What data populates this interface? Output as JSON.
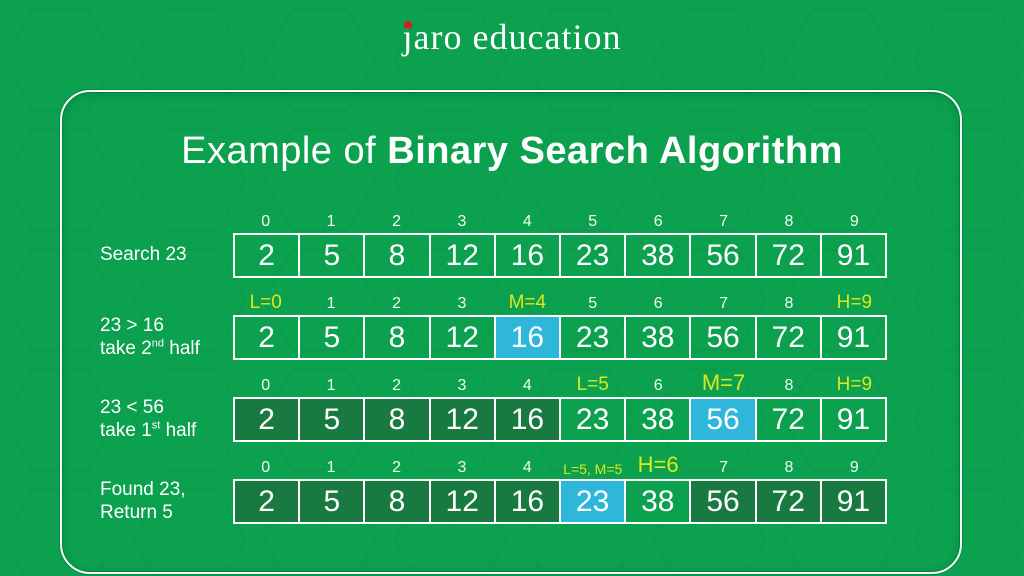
{
  "logo": {
    "first": "j",
    "rest": "aro education"
  },
  "title": {
    "regular": "Example of ",
    "bold": "Binary Search Algorithm"
  },
  "colors": {
    "background": "#0BA14F",
    "cell_dim": "#197A41",
    "cell_active": "#2FB6DB",
    "label_highlight": "#DCE81B",
    "cell_border": "#FFFFFF",
    "logo_dot": "#D21F26"
  },
  "array_values": [
    "2",
    "5",
    "8",
    "12",
    "16",
    "23",
    "38",
    "56",
    "72",
    "91"
  ],
  "rows": [
    {
      "name": "step-1",
      "label_lines": [
        [
          {
            "t": "Search 23"
          }
        ]
      ],
      "indices": [
        {
          "t": "0"
        },
        {
          "t": "1"
        },
        {
          "t": "2"
        },
        {
          "t": "3"
        },
        {
          "t": "4"
        },
        {
          "t": "5"
        },
        {
          "t": "6"
        },
        {
          "t": "7"
        },
        {
          "t": "8"
        },
        {
          "t": "9"
        }
      ],
      "cells": [
        {
          "v": "2",
          "s": "normal"
        },
        {
          "v": "5",
          "s": "normal"
        },
        {
          "v": "8",
          "s": "normal"
        },
        {
          "v": "12",
          "s": "normal"
        },
        {
          "v": "16",
          "s": "normal"
        },
        {
          "v": "23",
          "s": "normal"
        },
        {
          "v": "38",
          "s": "normal"
        },
        {
          "v": "56",
          "s": "normal"
        },
        {
          "v": "72",
          "s": "normal"
        },
        {
          "v": "91",
          "s": "normal"
        }
      ]
    },
    {
      "name": "step-2",
      "label_lines": [
        [
          {
            "t": "23 > 16"
          }
        ],
        [
          {
            "t": "take 2"
          },
          {
            "t": "nd",
            "sup": true
          },
          {
            "t": " half"
          }
        ]
      ],
      "indices": [
        {
          "t": "L=0",
          "hl": true
        },
        {
          "t": "1"
        },
        {
          "t": "2"
        },
        {
          "t": "3"
        },
        {
          "t": "M=4",
          "hl": true
        },
        {
          "t": "5"
        },
        {
          "t": "6"
        },
        {
          "t": "7"
        },
        {
          "t": "8"
        },
        {
          "t": "H=9",
          "hl": true
        }
      ],
      "cells": [
        {
          "v": "2",
          "s": "normal"
        },
        {
          "v": "5",
          "s": "normal"
        },
        {
          "v": "8",
          "s": "normal"
        },
        {
          "v": "12",
          "s": "normal"
        },
        {
          "v": "16",
          "s": "active"
        },
        {
          "v": "23",
          "s": "normal"
        },
        {
          "v": "38",
          "s": "normal"
        },
        {
          "v": "56",
          "s": "normal"
        },
        {
          "v": "72",
          "s": "normal"
        },
        {
          "v": "91",
          "s": "normal"
        }
      ]
    },
    {
      "name": "step-3",
      "label_lines": [
        [
          {
            "t": "23 < 56"
          }
        ],
        [
          {
            "t": "take 1"
          },
          {
            "t": "st",
            "sup": true
          },
          {
            "t": " half"
          }
        ]
      ],
      "indices": [
        {
          "t": "0"
        },
        {
          "t": "1"
        },
        {
          "t": "2"
        },
        {
          "t": "3"
        },
        {
          "t": "4"
        },
        {
          "t": "L=5",
          "hl": true
        },
        {
          "t": "6"
        },
        {
          "t": "M=7",
          "hl": true,
          "size": "l"
        },
        {
          "t": "8"
        },
        {
          "t": "H=9",
          "hl": true
        }
      ],
      "cells": [
        {
          "v": "2",
          "s": "dim"
        },
        {
          "v": "5",
          "s": "dim"
        },
        {
          "v": "8",
          "s": "dim"
        },
        {
          "v": "12",
          "s": "dim"
        },
        {
          "v": "16",
          "s": "dim"
        },
        {
          "v": "23",
          "s": "normal"
        },
        {
          "v": "38",
          "s": "normal"
        },
        {
          "v": "56",
          "s": "active"
        },
        {
          "v": "72",
          "s": "normal"
        },
        {
          "v": "91",
          "s": "normal"
        }
      ]
    },
    {
      "name": "step-4",
      "label_lines": [
        [
          {
            "t": "Found 23,"
          }
        ],
        [
          {
            "t": "Return 5"
          }
        ]
      ],
      "indices": [
        {
          "t": "0"
        },
        {
          "t": "1"
        },
        {
          "t": "2"
        },
        {
          "t": "3"
        },
        {
          "t": "4"
        },
        {
          "t": "L=5, M=5",
          "hl": true,
          "size": "s"
        },
        {
          "t": "H=6",
          "hl": true,
          "size": "l"
        },
        {
          "t": "7"
        },
        {
          "t": "8"
        },
        {
          "t": "9"
        }
      ],
      "cells": [
        {
          "v": "2",
          "s": "dim"
        },
        {
          "v": "5",
          "s": "dim"
        },
        {
          "v": "8",
          "s": "dim"
        },
        {
          "v": "12",
          "s": "dim"
        },
        {
          "v": "16",
          "s": "dim"
        },
        {
          "v": "23",
          "s": "active"
        },
        {
          "v": "38",
          "s": "normal"
        },
        {
          "v": "56",
          "s": "dim"
        },
        {
          "v": "72",
          "s": "dim"
        },
        {
          "v": "91",
          "s": "dim"
        }
      ]
    }
  ],
  "row_tops": [
    209,
    291,
    373,
    455
  ]
}
